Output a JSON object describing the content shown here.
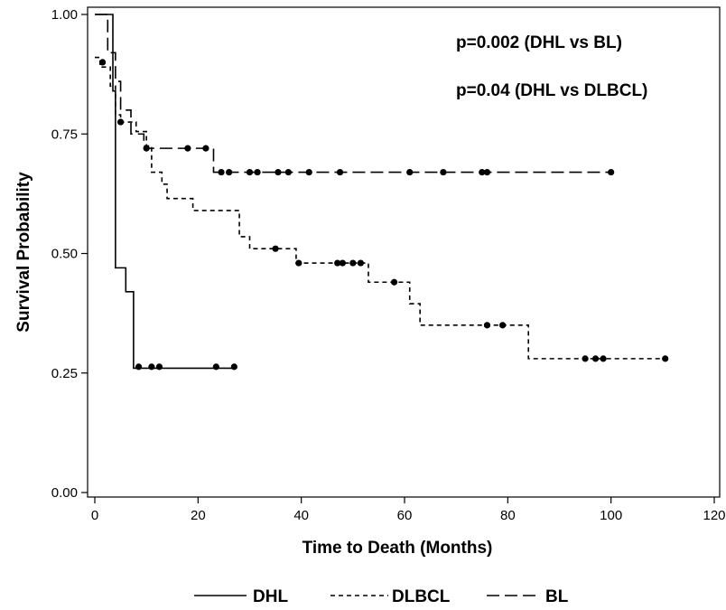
{
  "chart_data": {
    "type": "line",
    "subtype": "kaplan-meier-step",
    "xlabel": "Time to Death (Months)",
    "ylabel": "Survival Probability",
    "xlim": [
      0,
      120
    ],
    "ylim": [
      0,
      1
    ],
    "x_ticks": [
      0,
      20,
      40,
      60,
      80,
      100,
      120
    ],
    "x_tick_labels": [
      "0",
      "20",
      "40",
      "60",
      "80",
      "100",
      "120"
    ],
    "y_ticks": [
      0,
      0.25,
      0.5,
      0.75,
      1.0
    ],
    "y_tick_labels": [
      "0.00",
      "0.25",
      "0.50",
      "0.75",
      "1.00"
    ],
    "grid": false,
    "legend_position": "bottom",
    "annotations": [
      {
        "text": "p=0.002 (DHL vs BL)",
        "x": 66,
        "y": 0.95
      },
      {
        "text": "p=0.04 (DHL vs DLBCL)",
        "x": 66,
        "y": 0.85
      }
    ],
    "series": [
      {
        "name": "DHL",
        "style": "solid",
        "steps": [
          [
            0,
            1.0
          ],
          [
            3.5,
            0.84
          ],
          [
            4,
            0.47
          ],
          [
            6,
            0.42
          ],
          [
            7.5,
            0.26
          ],
          [
            27,
            0.26
          ]
        ],
        "censored": [
          [
            1.5,
            0.9
          ],
          [
            8.5,
            0.263
          ],
          [
            11,
            0.263
          ],
          [
            12.5,
            0.263
          ],
          [
            23.5,
            0.263
          ],
          [
            27,
            0.263
          ]
        ]
      },
      {
        "name": "DLBCL",
        "style": "short-dash",
        "steps": [
          [
            0,
            0.91
          ],
          [
            1,
            0.89
          ],
          [
            3,
            0.85
          ],
          [
            4,
            0.79
          ],
          [
            5,
            0.775
          ],
          [
            8,
            0.755
          ],
          [
            10,
            0.725
          ],
          [
            11,
            0.67
          ],
          [
            13,
            0.645
          ],
          [
            14,
            0.615
          ],
          [
            19,
            0.59
          ],
          [
            28,
            0.535
          ],
          [
            30,
            0.51
          ],
          [
            35,
            0.51
          ],
          [
            39,
            0.48
          ],
          [
            53,
            0.44
          ],
          [
            61,
            0.395
          ],
          [
            63,
            0.35
          ],
          [
            84,
            0.28
          ],
          [
            110.5,
            0.28
          ]
        ],
        "censored": [
          [
            5,
            0.775
          ],
          [
            35,
            0.51
          ],
          [
            39.5,
            0.48
          ],
          [
            47,
            0.48
          ],
          [
            48,
            0.48
          ],
          [
            50,
            0.48
          ],
          [
            51.5,
            0.48
          ],
          [
            58,
            0.44
          ],
          [
            76,
            0.35
          ],
          [
            79,
            0.35
          ],
          [
            95,
            0.28
          ],
          [
            97,
            0.28
          ],
          [
            98.5,
            0.28
          ],
          [
            110.5,
            0.28
          ]
        ]
      },
      {
        "name": "BL",
        "style": "long-dash",
        "steps": [
          [
            0,
            1.0
          ],
          [
            2.5,
            0.92
          ],
          [
            4,
            0.86
          ],
          [
            5,
            0.8
          ],
          [
            7,
            0.75
          ],
          [
            9.5,
            0.725
          ],
          [
            10,
            0.72
          ],
          [
            23,
            0.67
          ],
          [
            100,
            0.67
          ]
        ],
        "censored": [
          [
            10,
            0.72
          ],
          [
            18,
            0.72
          ],
          [
            21.5,
            0.72
          ],
          [
            24.5,
            0.67
          ],
          [
            26,
            0.67
          ],
          [
            30,
            0.67
          ],
          [
            31.5,
            0.67
          ],
          [
            35.5,
            0.67
          ],
          [
            37.5,
            0.67
          ],
          [
            41.5,
            0.67
          ],
          [
            47.5,
            0.67
          ],
          [
            61,
            0.67
          ],
          [
            67.5,
            0.67
          ],
          [
            75,
            0.67
          ],
          [
            76,
            0.67
          ],
          [
            100,
            0.67
          ]
        ]
      }
    ]
  }
}
